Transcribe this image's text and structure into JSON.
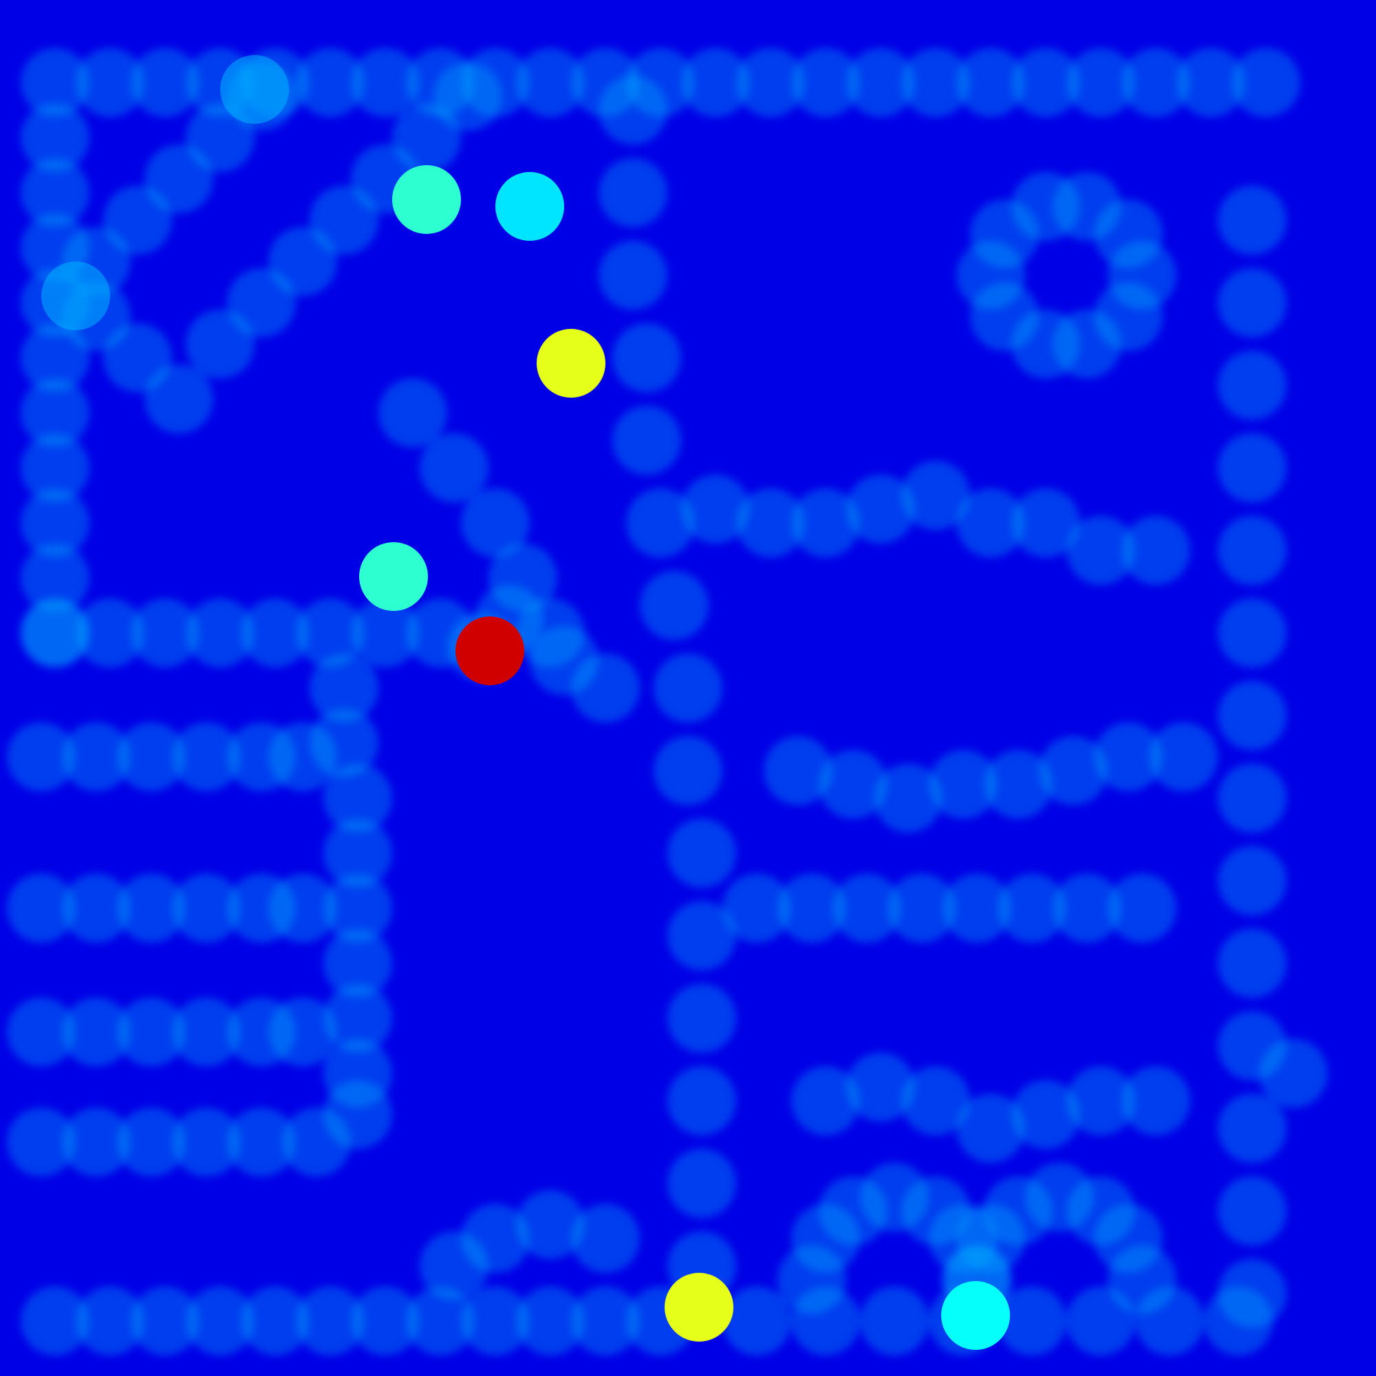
{
  "chart_data": {
    "type": "heatmap",
    "title": "",
    "xlabel": "",
    "ylabel": "",
    "xlim": [
      0,
      100
    ],
    "ylim": [
      0,
      100
    ],
    "grid": false,
    "colormap": "jet",
    "value_range": [
      0,
      1
    ],
    "background_value": 0,
    "trace_value": 0.12,
    "bright_trace_value": 0.22,
    "trace_points": [
      [
        4,
        6
      ],
      [
        8,
        6
      ],
      [
        12,
        6
      ],
      [
        16,
        6
      ],
      [
        20,
        6
      ],
      [
        24,
        6
      ],
      [
        28,
        6
      ],
      [
        32,
        6
      ],
      [
        36,
        6
      ],
      [
        40,
        6
      ],
      [
        44,
        6
      ],
      [
        48,
        6
      ],
      [
        52,
        6
      ],
      [
        56,
        6
      ],
      [
        60,
        6
      ],
      [
        64,
        6
      ],
      [
        68,
        6
      ],
      [
        72,
        6
      ],
      [
        76,
        6
      ],
      [
        80,
        6
      ],
      [
        84,
        6
      ],
      [
        88,
        6
      ],
      [
        92,
        6
      ],
      [
        4,
        10
      ],
      [
        4,
        14
      ],
      [
        4,
        18
      ],
      [
        4,
        22
      ],
      [
        4,
        26
      ],
      [
        4,
        30
      ],
      [
        4,
        34
      ],
      [
        4,
        38
      ],
      [
        4,
        42
      ],
      [
        4,
        46
      ],
      [
        7,
        23
      ],
      [
        10,
        26
      ],
      [
        13,
        29
      ],
      [
        16,
        25
      ],
      [
        19,
        22
      ],
      [
        22,
        19
      ],
      [
        25,
        16
      ],
      [
        28,
        13
      ],
      [
        31,
        10
      ],
      [
        34,
        7
      ],
      [
        7,
        19
      ],
      [
        10,
        16
      ],
      [
        13,
        13
      ],
      [
        16,
        10
      ],
      [
        19,
        7
      ],
      [
        30,
        30
      ],
      [
        33,
        34
      ],
      [
        36,
        38
      ],
      [
        38,
        42
      ],
      [
        40,
        46
      ],
      [
        4,
        46
      ],
      [
        8,
        46
      ],
      [
        12,
        46
      ],
      [
        16,
        46
      ],
      [
        20,
        46
      ],
      [
        24,
        46
      ],
      [
        28,
        46
      ],
      [
        32,
        46
      ],
      [
        35,
        47
      ],
      [
        3,
        55
      ],
      [
        7,
        55
      ],
      [
        11,
        55
      ],
      [
        15,
        55
      ],
      [
        19,
        55
      ],
      [
        22,
        55
      ],
      [
        3,
        66
      ],
      [
        7,
        66
      ],
      [
        11,
        66
      ],
      [
        15,
        66
      ],
      [
        19,
        66
      ],
      [
        22,
        66
      ],
      [
        3,
        75
      ],
      [
        7,
        75
      ],
      [
        11,
        75
      ],
      [
        15,
        75
      ],
      [
        19,
        75
      ],
      [
        22,
        75
      ],
      [
        3,
        83
      ],
      [
        7,
        83
      ],
      [
        11,
        83
      ],
      [
        15,
        83
      ],
      [
        19,
        83
      ],
      [
        23,
        83
      ],
      [
        26,
        81
      ],
      [
        25,
        50
      ],
      [
        25,
        54
      ],
      [
        26,
        58
      ],
      [
        26,
        62
      ],
      [
        26,
        66
      ],
      [
        26,
        70
      ],
      [
        26,
        74
      ],
      [
        26,
        78
      ],
      [
        46,
        8
      ],
      [
        46,
        14
      ],
      [
        46,
        20
      ],
      [
        47,
        26
      ],
      [
        47,
        32
      ],
      [
        48,
        38
      ],
      [
        49,
        44
      ],
      [
        50,
        50
      ],
      [
        50,
        56
      ],
      [
        51,
        62
      ],
      [
        51,
        68
      ],
      [
        51,
        74
      ],
      [
        51,
        80
      ],
      [
        51,
        86
      ],
      [
        51,
        92
      ],
      [
        76,
        15
      ],
      [
        73,
        17
      ],
      [
        72,
        20
      ],
      [
        73,
        23
      ],
      [
        76,
        25
      ],
      [
        79,
        25
      ],
      [
        82,
        23
      ],
      [
        83,
        20
      ],
      [
        82,
        17
      ],
      [
        79,
        15
      ],
      [
        91,
        16
      ],
      [
        91,
        22
      ],
      [
        91,
        28
      ],
      [
        91,
        34
      ],
      [
        91,
        40
      ],
      [
        91,
        46
      ],
      [
        91,
        52
      ],
      [
        91,
        58
      ],
      [
        91,
        64
      ],
      [
        91,
        70
      ],
      [
        91,
        76
      ],
      [
        91,
        82
      ],
      [
        91,
        88
      ],
      [
        91,
        94
      ],
      [
        94,
        78
      ],
      [
        52,
        37
      ],
      [
        56,
        38
      ],
      [
        60,
        38
      ],
      [
        64,
        37
      ],
      [
        68,
        36
      ],
      [
        72,
        38
      ],
      [
        76,
        38
      ],
      [
        80,
        40
      ],
      [
        84,
        40
      ],
      [
        58,
        56
      ],
      [
        62,
        57
      ],
      [
        66,
        58
      ],
      [
        70,
        57
      ],
      [
        74,
        57
      ],
      [
        78,
        56
      ],
      [
        82,
        55
      ],
      [
        86,
        55
      ],
      [
        55,
        66
      ],
      [
        59,
        66
      ],
      [
        63,
        66
      ],
      [
        67,
        66
      ],
      [
        71,
        66
      ],
      [
        75,
        66
      ],
      [
        79,
        66
      ],
      [
        83,
        66
      ],
      [
        60,
        80
      ],
      [
        64,
        79
      ],
      [
        68,
        80
      ],
      [
        72,
        82
      ],
      [
        76,
        81
      ],
      [
        80,
        80
      ],
      [
        84,
        80
      ],
      [
        59,
        93
      ],
      [
        60,
        90
      ],
      [
        62,
        88
      ],
      [
        65,
        87
      ],
      [
        68,
        88
      ],
      [
        70,
        90
      ],
      [
        71,
        93
      ],
      [
        71,
        93
      ],
      [
        72,
        90
      ],
      [
        74,
        88
      ],
      [
        77,
        87
      ],
      [
        80,
        88
      ],
      [
        82,
        90
      ],
      [
        83,
        93
      ],
      [
        55,
        96
      ],
      [
        60,
        96
      ],
      [
        65,
        96
      ],
      [
        70,
        96
      ],
      [
        75,
        96
      ],
      [
        80,
        96
      ],
      [
        85,
        96
      ],
      [
        90,
        96
      ],
      [
        4,
        96
      ],
      [
        8,
        96
      ],
      [
        12,
        96
      ],
      [
        16,
        96
      ],
      [
        20,
        96
      ],
      [
        24,
        96
      ],
      [
        28,
        96
      ],
      [
        32,
        96
      ],
      [
        36,
        96
      ],
      [
        40,
        96
      ],
      [
        44,
        96
      ],
      [
        48,
        96
      ],
      [
        33,
        92
      ],
      [
        36,
        90
      ],
      [
        40,
        89
      ],
      [
        44,
        90
      ],
      [
        37,
        45
      ],
      [
        41,
        48
      ],
      [
        44,
        50
      ]
    ],
    "highlights": [
      {
        "x": 31,
        "y": 14.5,
        "value": 0.42
      },
      {
        "x": 38.5,
        "y": 15,
        "value": 0.35
      },
      {
        "x": 41.5,
        "y": 26.4,
        "value": 0.6
      },
      {
        "x": 28.6,
        "y": 41.9,
        "value": 0.42
      },
      {
        "x": 35.6,
        "y": 47.3,
        "value": 0.92
      },
      {
        "x": 50.8,
        "y": 95,
        "value": 0.6
      },
      {
        "x": 70.9,
        "y": 95.6,
        "value": 0.38
      },
      {
        "x": 5.5,
        "y": 21.5,
        "value": 0.3
      },
      {
        "x": 18.5,
        "y": 6.5,
        "value": 0.3
      }
    ]
  }
}
